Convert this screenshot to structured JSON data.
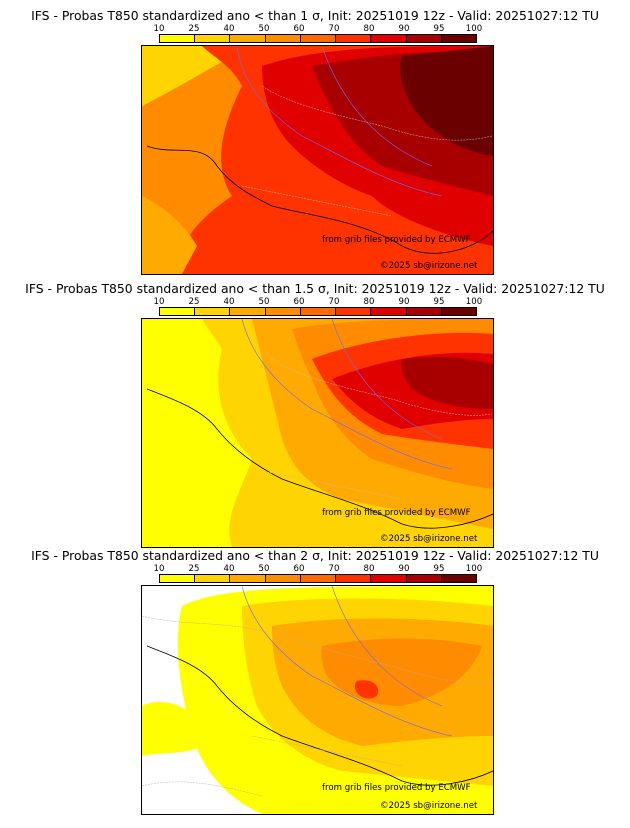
{
  "colorbar": {
    "ticks": [
      "10",
      "25",
      "40",
      "50",
      "60",
      "70",
      "80",
      "90",
      "95",
      "100"
    ],
    "colors": [
      "#ffff00",
      "#ffd400",
      "#ffaa00",
      "#ff8c00",
      "#ff6a00",
      "#ff3300",
      "#e00000",
      "#a80000",
      "#6b0000"
    ]
  },
  "panels": [
    {
      "title": "IFS - Probas T850  standardized ano < than 1 σ, Init: 20251019 12z - Valid: 20251027:12 TU"
    },
    {
      "title": "IFS - Probas T850  standardized ano < than 1.5 σ, Init: 20251019 12z - Valid: 20251027:12 TU"
    },
    {
      "title": "IFS - Probas T850  standardized ano < than 2 σ, Init: 20251019 12z - Valid: 20251027:12 TU"
    }
  ],
  "credits": {
    "source": "from grib files provided by ECMWF",
    "copyright": "©2025 sb@irizone.net"
  }
}
